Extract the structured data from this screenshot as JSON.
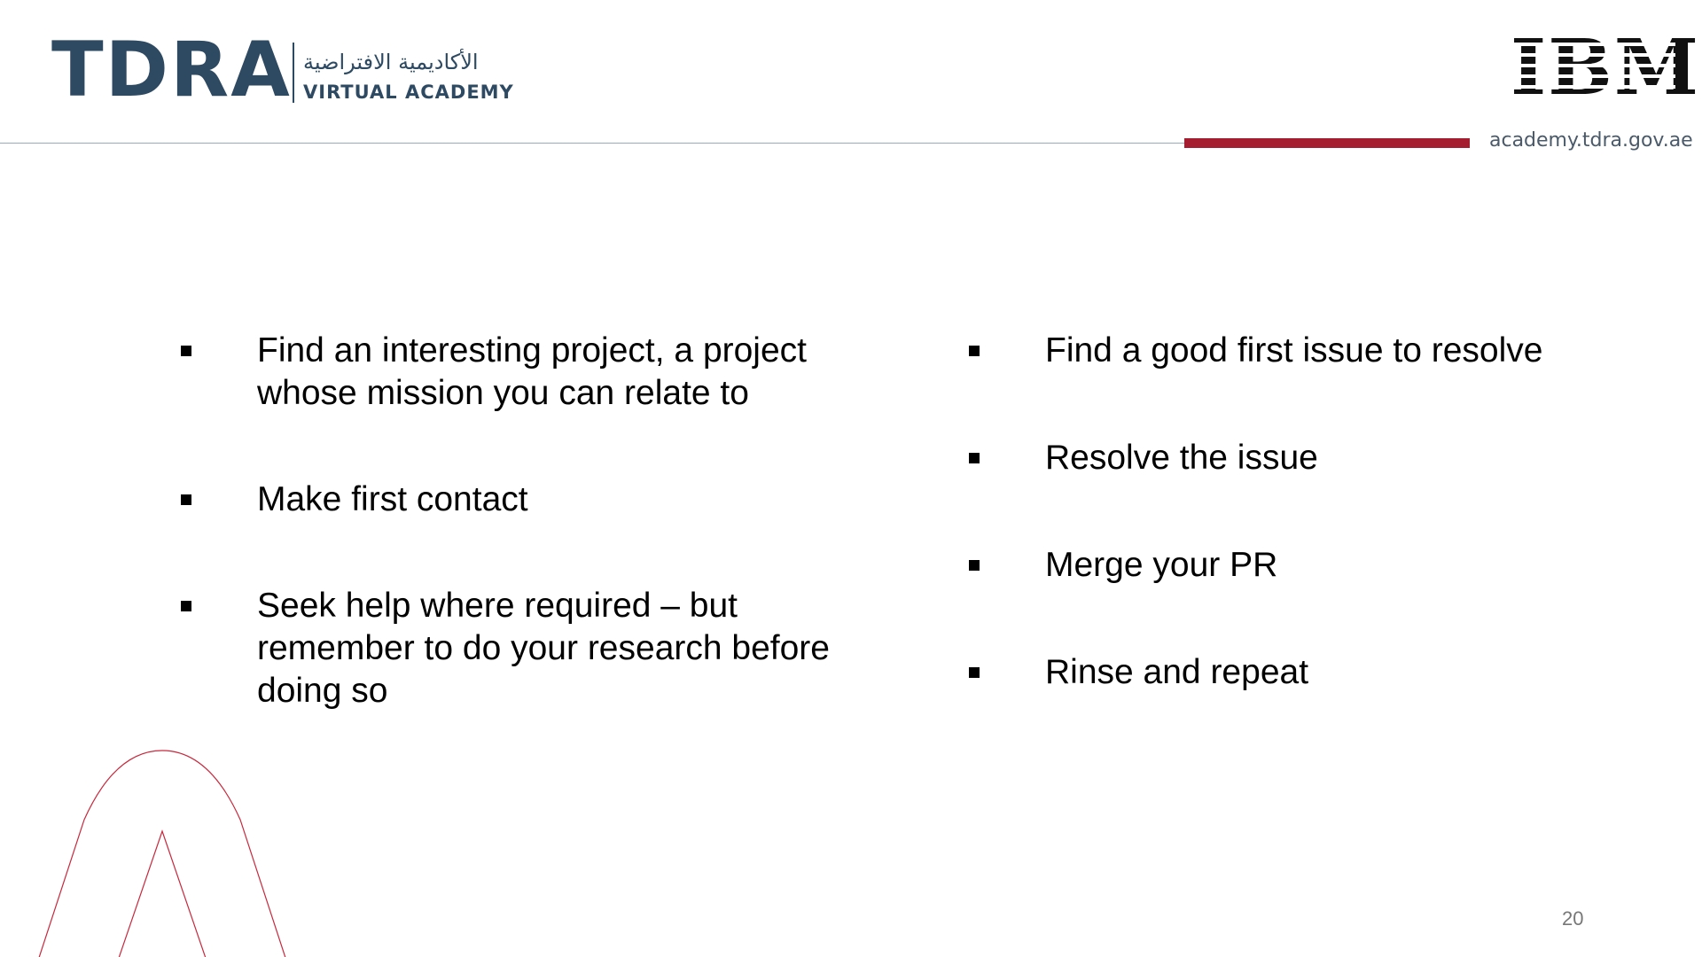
{
  "header": {
    "logo_text": "TDRA",
    "arabic_name": "الأكاديمية الافتراضية",
    "english_name": "VIRTUAL ACADEMY",
    "partner_logo": "IBM",
    "url": "academy.tdra.gov.ae"
  },
  "content": {
    "left_bullets": [
      "Find an interesting project, a project whose mission you can relate to",
      "Make first contact",
      "Seek help where required – but remember to do your research before doing so"
    ],
    "right_bullets": [
      "Find a good first issue to resolve",
      "Resolve the issue",
      "Merge your PR",
      "Rinse and repeat"
    ]
  },
  "footer": {
    "page_number": "20"
  }
}
